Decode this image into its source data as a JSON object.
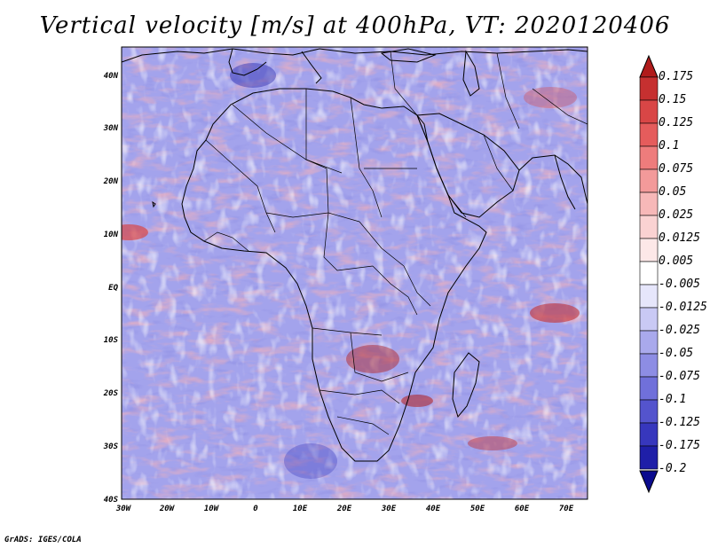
{
  "title": "Vertical velocity [m/s] at 400hPa, VT: 2020120406",
  "credit": "GrADS: IGES/COLA",
  "map": {
    "lon_range": [
      -30,
      78
    ],
    "lat_range": [
      -40,
      46
    ],
    "lat_labels": [
      "40N",
      "30N",
      "20N",
      "10N",
      "EQ",
      "10S",
      "20S",
      "30S",
      "40S"
    ],
    "lon_labels": [
      "30W",
      "20W",
      "10W",
      "0",
      "10E",
      "20E",
      "30E",
      "40E",
      "50E",
      "60E",
      "70E"
    ]
  },
  "colorbar": {
    "labels": [
      "0.175",
      "0.15",
      "0.125",
      "0.1",
      "0.075",
      "0.05",
      "0.025",
      "0.0125",
      "0.005",
      "-0.005",
      "-0.0125",
      "-0.025",
      "-0.05",
      "-0.075",
      "-0.1",
      "-0.125",
      "-0.175",
      "-0.2"
    ],
    "colors": [
      "#b01b1b",
      "#c63030",
      "#d94646",
      "#e55c5c",
      "#ee7c7c",
      "#f39a9a",
      "#f7b8b8",
      "#fad2d2",
      "#fde8e8",
      "#ffffff",
      "#e6e6fb",
      "#c9c9f4",
      "#a9a9ec",
      "#8d8de4",
      "#7070da",
      "#5454cd",
      "#3737bd",
      "#1f1fa8",
      "#0b0b8e"
    ]
  },
  "colors": {
    "background": "#ffffff",
    "coast": "#000000",
    "field_negative": "#8c8ce6",
    "field_positive": "#ee8080"
  }
}
